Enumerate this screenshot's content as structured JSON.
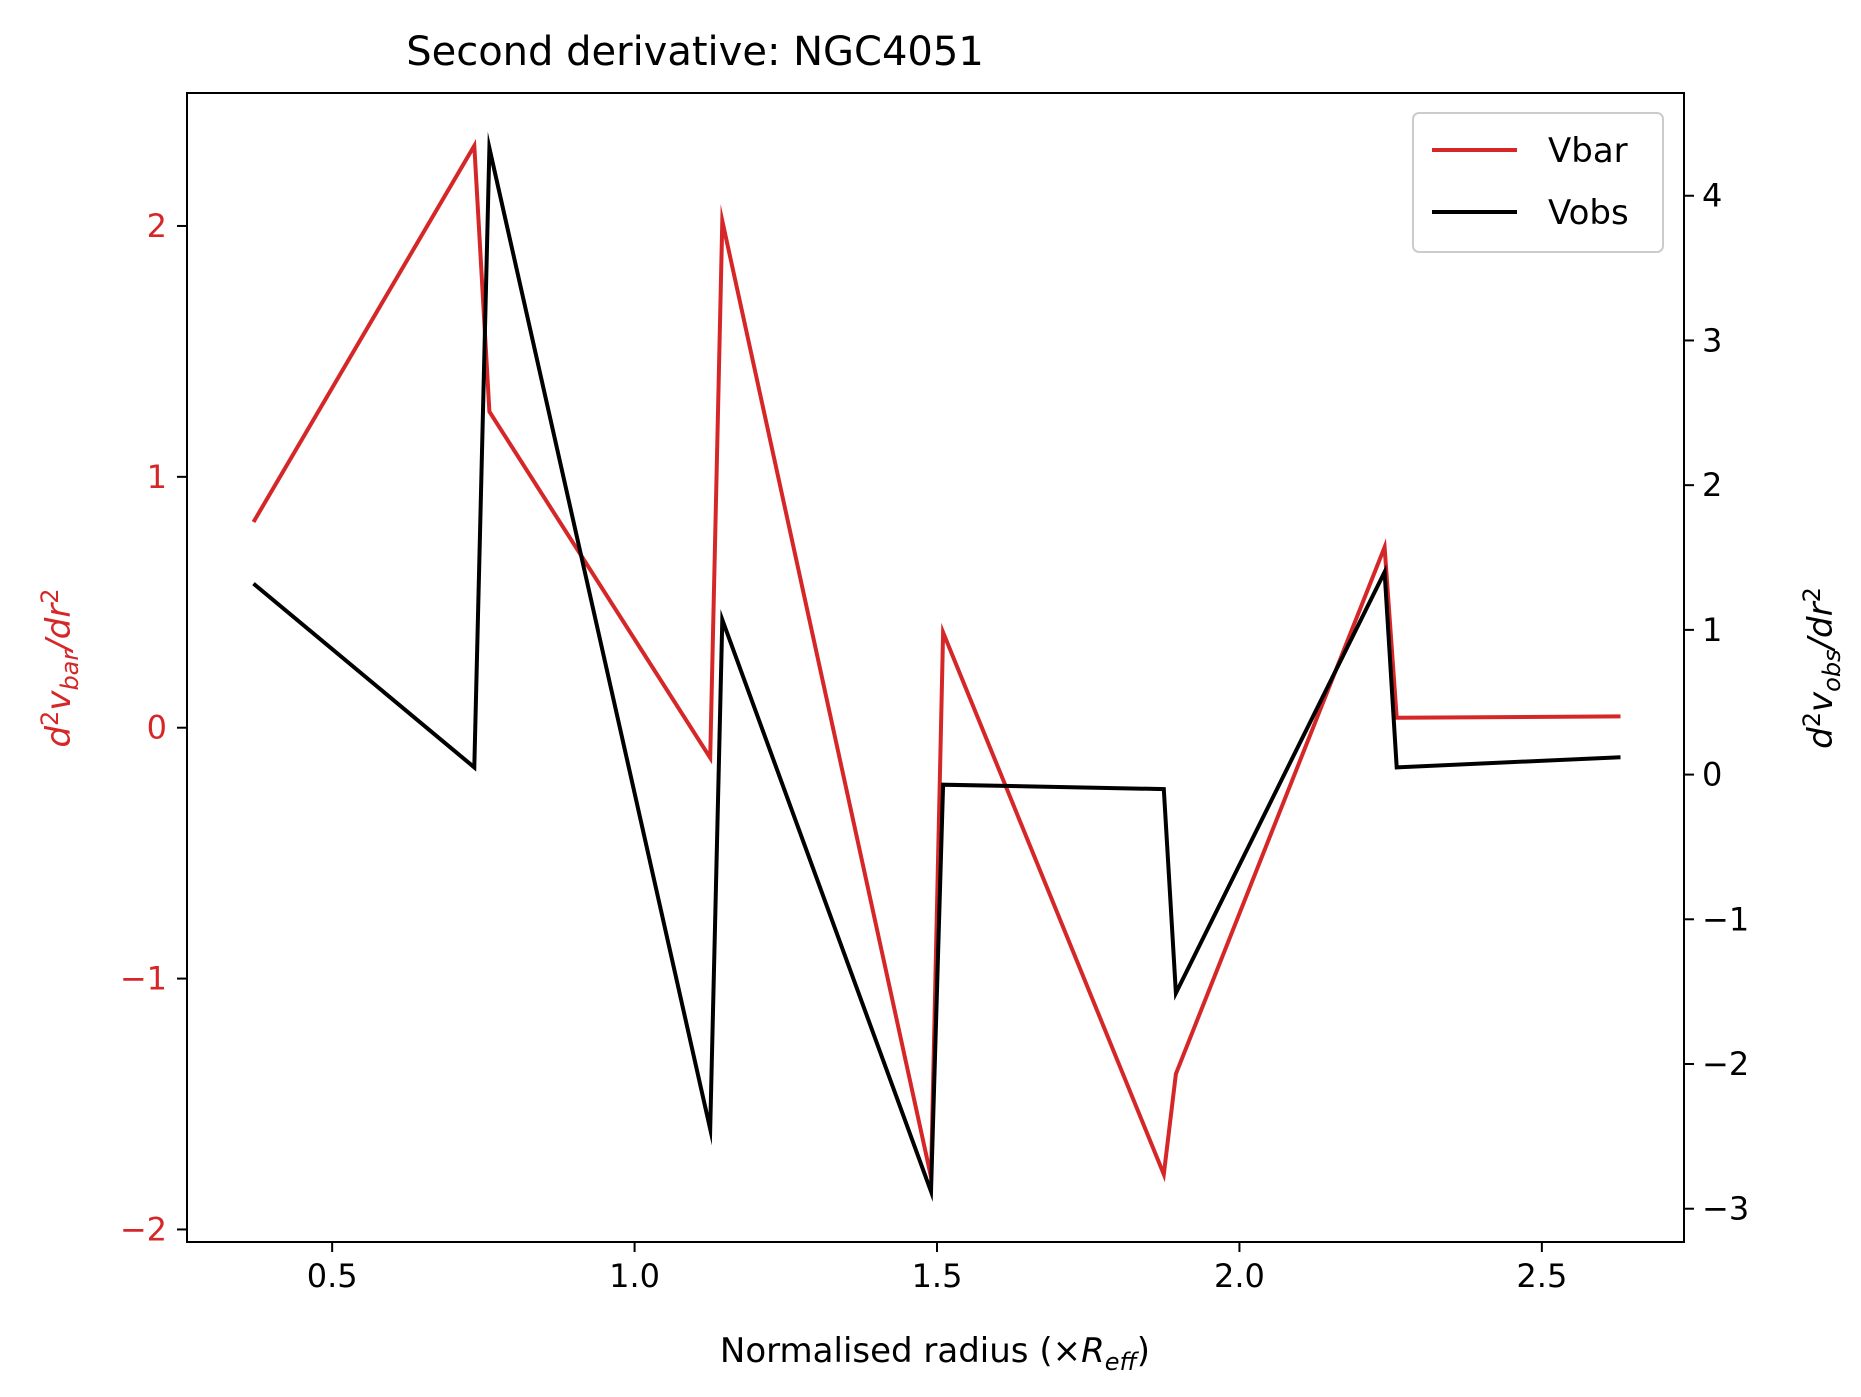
{
  "chart_data": {
    "type": "line",
    "title": "Second derivative: NGC4051",
    "xlabel": {
      "prefix": "Normalised radius (×",
      "var": "R",
      "sub": "eff",
      "suffix": ")"
    },
    "ylabel_left": {
      "d": "d",
      "sup": "2",
      "v": "v",
      "sub": "bar",
      "tail": "/dr",
      "sup2": "2"
    },
    "ylabel_right": {
      "d": "d",
      "sup": "2",
      "v": "v",
      "sub": "obs",
      "tail": "/dr",
      "sup2": "2"
    },
    "xlim": [
      0.26,
      2.735
    ],
    "ylim_left": [
      -2.05,
      2.53
    ],
    "ylim_right": [
      -3.23,
      4.71
    ],
    "x_ticks": [
      0.5,
      1.0,
      1.5,
      2.0,
      2.5
    ],
    "x_tick_labels": [
      "0.5",
      "1.0",
      "1.5",
      "2.0",
      "2.5"
    ],
    "y_left_ticks": [
      -2,
      -1,
      0,
      1,
      2
    ],
    "y_left_tick_labels": [
      "−2",
      "−1",
      "0",
      "1",
      "2"
    ],
    "y_right_ticks": [
      -3,
      -2,
      -1,
      0,
      1,
      2,
      3,
      4
    ],
    "y_right_tick_labels": [
      "−3",
      "−2",
      "−1",
      "0",
      "1",
      "2",
      "3",
      "4"
    ],
    "grid": false,
    "legend_position": "top-right",
    "series": [
      {
        "name": "Vbar",
        "axis": "left",
        "color": "#d62728",
        "x": [
          0.37,
          0.735,
          0.76,
          1.125,
          1.145,
          1.49,
          1.51,
          1.875,
          1.895,
          2.24,
          2.26,
          2.63
        ],
        "y": [
          0.82,
          2.32,
          1.26,
          -0.12,
          2.02,
          -1.79,
          0.38,
          -1.78,
          -1.38,
          0.72,
          0.04,
          0.045
        ]
      },
      {
        "name": "Vobs",
        "axis": "right",
        "color": "#000000",
        "x": [
          0.37,
          0.735,
          0.76,
          1.125,
          1.145,
          1.49,
          1.51,
          1.875,
          1.895,
          2.24,
          2.26,
          2.63
        ],
        "y": [
          1.32,
          0.05,
          4.33,
          -2.45,
          1.07,
          -2.88,
          -0.07,
          -0.1,
          -1.51,
          1.4,
          0.05,
          0.12
        ]
      }
    ]
  }
}
